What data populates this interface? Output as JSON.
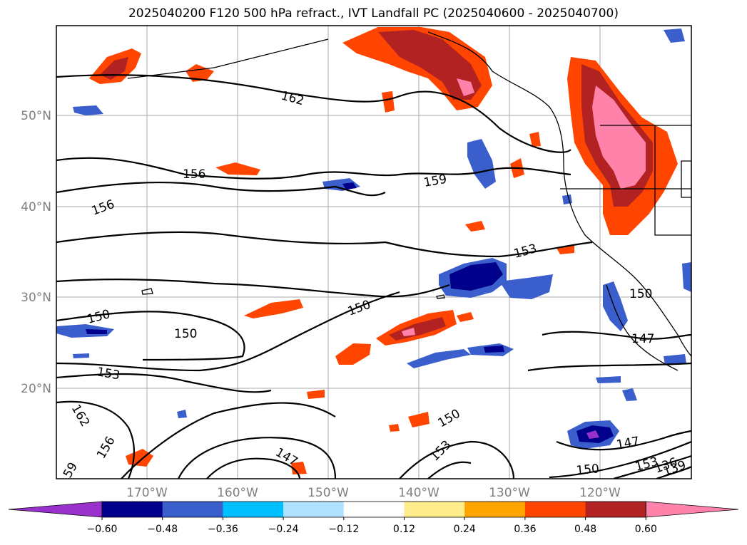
{
  "title": "2025040200 F120 500 hPa refract., IVT Landfall PC (2025040600 - 2025040700)",
  "map": {
    "lat_labels": [
      "50°N",
      "40°N",
      "30°N",
      "20°N"
    ],
    "lon_labels": [
      "170°W",
      "160°W",
      "150°W",
      "140°W",
      "130°W",
      "120°W"
    ],
    "contour_labels": [
      {
        "text": "162"
      },
      {
        "text": "156"
      },
      {
        "text": "156"
      },
      {
        "text": "159"
      },
      {
        "text": "153"
      },
      {
        "text": "150"
      },
      {
        "text": "150"
      },
      {
        "text": "150"
      },
      {
        "text": "150"
      },
      {
        "text": "147"
      },
      {
        "text": "153"
      },
      {
        "text": "162"
      },
      {
        "text": "156"
      },
      {
        "text": "59"
      },
      {
        "text": "147"
      },
      {
        "text": "153"
      },
      {
        "text": "150"
      },
      {
        "text": "147"
      },
      {
        "text": "150"
      },
      {
        "text": "153"
      },
      {
        "text": "136"
      },
      {
        "text": "139"
      }
    ]
  },
  "colorbar": {
    "ticks": [
      "−0.60",
      "−0.48",
      "−0.36",
      "−0.24",
      "−0.12",
      "0.12",
      "0.24",
      "0.36",
      "0.48",
      "0.60"
    ],
    "colors": [
      "#9932cc",
      "#00008b",
      "#3a5fcd",
      "#00bfff",
      "#b0e2ff",
      "#ffffff",
      "#ffec8b",
      "#ffa500",
      "#ff4500",
      "#b22222",
      "#ff82ab"
    ]
  },
  "colors": {
    "contour": "#000000",
    "grid": "#a9a9a9",
    "tick_label": "#7f7f7f"
  }
}
